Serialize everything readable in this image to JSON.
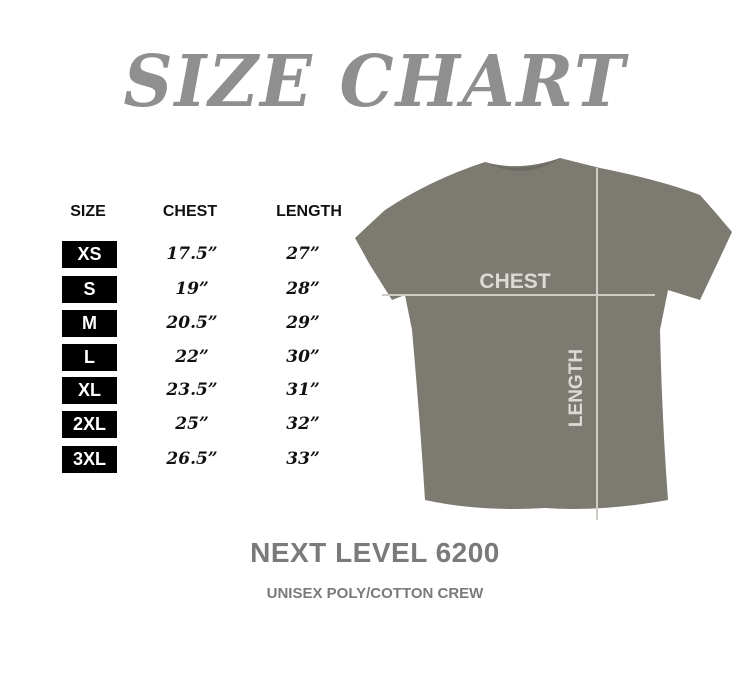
{
  "title": "SIZE CHART",
  "headers": {
    "size": "SIZE",
    "chest": "CHEST",
    "length": "LENGTH"
  },
  "rows": [
    {
      "size": "XS",
      "chest": "17.5”",
      "length": "27”"
    },
    {
      "size": "S",
      "chest": "19”",
      "length": "28”"
    },
    {
      "size": "M",
      "chest": "20.5”",
      "length": "29”"
    },
    {
      "size": "L",
      "chest": "22”",
      "length": "30”"
    },
    {
      "size": "XL",
      "chest": "23.5”",
      "length": "31”"
    },
    {
      "size": "2XL",
      "chest": "25”",
      "length": "32”"
    },
    {
      "size": "3XL",
      "chest": "26.5”",
      "length": "33”"
    }
  ],
  "diagram": {
    "chest_label": "CHEST",
    "length_label": "LENGTH",
    "shirt_color": "#7d7a72"
  },
  "brand": "NEXT LEVEL 6200",
  "subtitle": "UNISEX POLY/COTTON CREW"
}
